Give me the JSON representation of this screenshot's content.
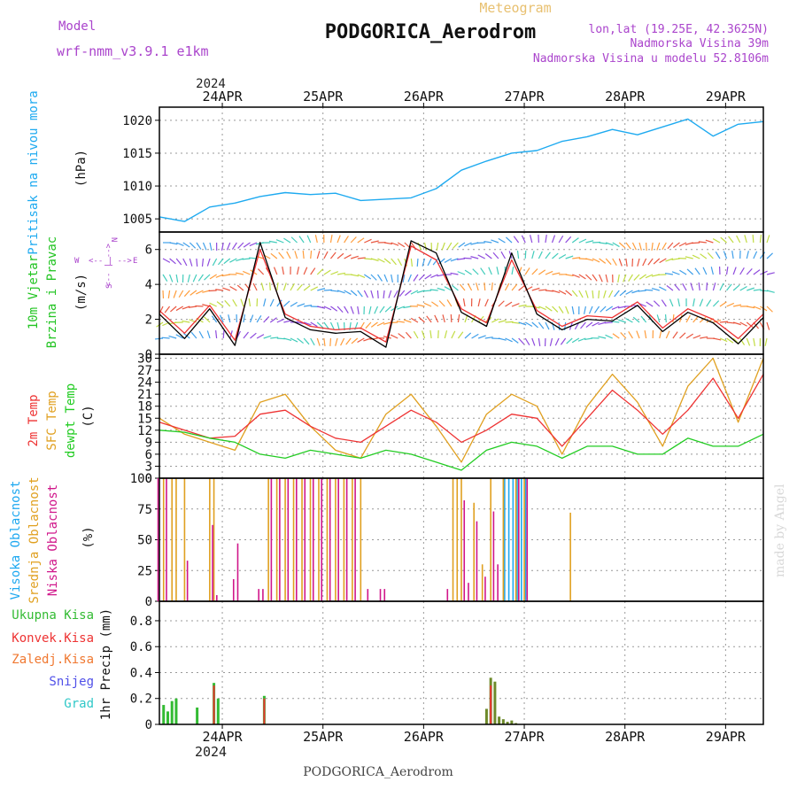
{
  "header": {
    "model_label": "Model",
    "model_name": "wrf-nmm_v3.9.1  e1km",
    "meteogram_label": "Meteogram",
    "station": "PODGORICA_Aerodrom",
    "coords": "lon,lat (19.25E, 42.3625N)",
    "altitude": "Nadmorska Visina 39m",
    "model_altitude": "Nadmorska Visina u modelu 52.8106m",
    "footer_station": "PODGORICA_Aerodrom",
    "watermark": "made by Angel"
  },
  "colors": {
    "pressure": "#1eaaf0",
    "wind_label": "#22c422",
    "wind_speed": "#000000",
    "wind_gust": "#ee3333",
    "temp_2m": "#ee3333",
    "temp_sfc": "#e0a020",
    "dewpoint": "#22cc22",
    "cloud_high": "#1ea8f0",
    "cloud_mid": "#e0a020",
    "cloud_low": "#d0168a",
    "precip_total": "#33bb33",
    "precip_conv": "#ee3333",
    "precip_frozen": "#f07830",
    "snow": "#5050e8",
    "graupel": "#30c8c8",
    "direction_legend": "#aa44cc"
  },
  "x_axis": {
    "year": "2024",
    "dates": [
      "24APR",
      "25APR",
      "26APR",
      "27APR",
      "28APR",
      "29APR"
    ]
  },
  "panels": {
    "pressure": {
      "title": "Pritisak na nivou mora",
      "unit": "(hPa)"
    },
    "wind": {
      "title1": "10m Vjetar",
      "title2": "Brzina i Pravac",
      "unit": "(m/s)",
      "dir_N": "N",
      "dir_W": "W",
      "dir_E": "E",
      "dir_S": "S",
      "arrows_v": "<-- | -->",
      "arrows_h": "<-- | -->"
    },
    "temp": {
      "label_2m": "2m Temp",
      "label_sfc": "SFC Temp",
      "label_dew": "dewpt Temp",
      "unit": "(C)"
    },
    "cloud": {
      "label_high": "Visoka Oblacnost",
      "label_mid": "Srednja Oblacnost",
      "label_low": "Niska Oblacnost",
      "unit": "(%)"
    },
    "precip": {
      "label_total": "Ukupna Kisa",
      "label_conv": "Konvek.Kisa",
      "label_frozen": "Zaledj.Kisa",
      "label_snow": "Snijeg",
      "label_graupel": "Grad",
      "unit": "1hr Precip (mm)"
    }
  },
  "chart_data": [
    {
      "type": "line",
      "panel": "pressure",
      "ylim": [
        1003,
        1022
      ],
      "yticks": [
        1005,
        1010,
        1015,
        1020
      ],
      "x_hours": [
        0,
        6,
        12,
        18,
        24,
        30,
        36,
        42,
        48,
        54,
        60,
        66,
        72,
        78,
        84,
        90,
        96,
        102,
        108,
        114,
        120,
        126,
        132,
        138,
        144
      ],
      "series": [
        {
          "name": "Pritisak na nivou mora",
          "values": [
            1005.3,
            1004.6,
            1006.8,
            1007.4,
            1008.4,
            1009.0,
            1008.7,
            1008.9,
            1007.8,
            1008.0,
            1008.2,
            1009.6,
            1012.4,
            1013.8,
            1015.0,
            1015.4,
            1016.8,
            1017.5,
            1018.6,
            1017.8,
            1019.0,
            1020.2,
            1017.6,
            1019.4,
            1019.8
          ]
        }
      ]
    },
    {
      "type": "line",
      "panel": "wind",
      "ylim": [
        0,
        7
      ],
      "yticks": [
        0,
        2,
        4,
        6
      ],
      "x_hours": [
        0,
        6,
        12,
        18,
        24,
        30,
        36,
        42,
        48,
        54,
        60,
        66,
        72,
        78,
        84,
        90,
        96,
        102,
        108,
        114,
        120,
        126,
        132,
        138,
        144
      ],
      "series": [
        {
          "name": "Brzina",
          "values": [
            2.3,
            0.9,
            2.6,
            0.5,
            6.4,
            2.1,
            1.4,
            1.2,
            1.3,
            0.4,
            6.5,
            5.8,
            2.4,
            1.6,
            5.8,
            2.3,
            1.4,
            2.0,
            1.9,
            2.8,
            1.3,
            2.4,
            1.8,
            0.6,
            2.1
          ]
        },
        {
          "name": "Udar",
          "values": [
            2.5,
            1.2,
            2.8,
            0.8,
            6.0,
            2.3,
            1.6,
            1.4,
            1.5,
            0.7,
            6.2,
            5.4,
            2.6,
            1.8,
            5.4,
            2.5,
            1.6,
            2.2,
            2.1,
            3.0,
            1.5,
            2.6,
            2.0,
            0.9,
            2.3
          ]
        }
      ]
    },
    {
      "type": "line",
      "panel": "temperature",
      "ylim": [
        0,
        31
      ],
      "yticks": [
        0,
        3,
        6,
        9,
        12,
        15,
        18,
        21,
        24,
        27,
        30
      ],
      "x_hours": [
        0,
        6,
        12,
        18,
        24,
        30,
        36,
        42,
        48,
        54,
        60,
        66,
        72,
        78,
        84,
        90,
        96,
        102,
        108,
        114,
        120,
        126,
        132,
        138,
        144
      ],
      "series": [
        {
          "name": "2m Temp",
          "values": [
            14,
            12,
            10,
            10.5,
            16,
            17,
            13,
            10,
            9,
            13,
            17,
            14,
            9,
            12,
            16,
            15,
            8,
            15,
            22,
            17,
            11,
            17,
            25,
            15,
            26
          ]
        },
        {
          "name": "SFC Temp",
          "values": [
            15,
            11,
            9,
            7,
            19,
            21,
            13,
            7,
            5,
            16,
            21,
            13,
            4,
            16,
            21,
            18,
            6,
            18,
            26,
            19,
            8,
            23,
            30,
            14,
            30
          ]
        },
        {
          "name": "dewpt Temp",
          "values": [
            12,
            11.5,
            10,
            9,
            6,
            5,
            7,
            6,
            5,
            7,
            6,
            4,
            2,
            7,
            9,
            8,
            5,
            8,
            8,
            6,
            6,
            10,
            8,
            8,
            11
          ]
        }
      ]
    },
    {
      "type": "bar",
      "panel": "clouds",
      "ylim": [
        0,
        100
      ],
      "yticks": [
        0,
        25,
        50,
        75,
        100
      ],
      "series": [
        {
          "name": "Visoka Oblacnost",
          "x_hours": [
            82,
            83,
            84,
            85,
            86,
            87
          ],
          "values": [
            100,
            100,
            100,
            100,
            100,
            100
          ]
        },
        {
          "name": "Srednja Oblacnost",
          "x_hours": [
            1,
            3,
            4,
            6,
            12,
            13,
            26,
            28,
            30,
            32,
            34,
            36,
            38,
            40,
            42,
            44,
            46,
            48,
            70,
            71,
            72,
            75,
            77,
            79,
            82,
            85,
            87,
            98
          ],
          "values": [
            100,
            100,
            100,
            100,
            100,
            100,
            100,
            100,
            100,
            100,
            100,
            100,
            100,
            100,
            100,
            100,
            100,
            100,
            100,
            100,
            100,
            80,
            30,
            100,
            100,
            100,
            100,
            72
          ]
        },
        {
          "name": "Niska Oblacnost",
          "x_hours": [
            0,
            2,
            7,
            13,
            14,
            18,
            19,
            24,
            25,
            27,
            29,
            31,
            33,
            35,
            37,
            39,
            41,
            43,
            45,
            47,
            50,
            53,
            54,
            69,
            73,
            74,
            76,
            78,
            80,
            81,
            86,
            88
          ],
          "values": [
            100,
            100,
            33,
            62,
            5,
            18,
            47,
            10,
            10,
            100,
            100,
            100,
            100,
            100,
            100,
            100,
            100,
            100,
            100,
            100,
            10,
            10,
            10,
            10,
            82,
            15,
            65,
            20,
            73,
            30,
            100,
            100
          ]
        }
      ]
    },
    {
      "type": "bar",
      "panel": "precipitation",
      "ylim": [
        0,
        0.95
      ],
      "yticks": [
        0,
        0.2,
        0.4,
        0.6,
        0.8
      ],
      "series": [
        {
          "name": "Ukupna Kisa",
          "x_hours": [
            1,
            2,
            3,
            4,
            9,
            13,
            14,
            25,
            78,
            79,
            80,
            81,
            82,
            83,
            84,
            85
          ],
          "values": [
            0.15,
            0.1,
            0.18,
            0.2,
            0.13,
            0.32,
            0.2,
            0.22,
            0.12,
            0.36,
            0.33,
            0.06,
            0.04,
            0.02,
            0.03,
            0.01
          ]
        },
        {
          "name": "Konvek.Kisa",
          "x_hours": [
            13,
            25,
            79
          ],
          "values": [
            0.3,
            0.2,
            0.3
          ]
        },
        {
          "name": "Zaledj.Kisa",
          "x_hours": [],
          "values": []
        },
        {
          "name": "Snijeg",
          "x_hours": [],
          "values": []
        },
        {
          "name": "Grad",
          "x_hours": [],
          "values": []
        }
      ]
    }
  ]
}
